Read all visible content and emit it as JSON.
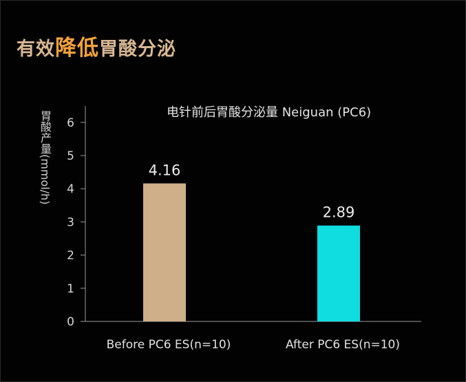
{
  "headline": {
    "prefix": "有效",
    "emphasis": "降低",
    "suffix": "胃酸分泌",
    "colors": {
      "normal": "#d8b892",
      "accent": "#f7a33b"
    }
  },
  "chart_data": {
    "type": "bar",
    "title": "电针前后胃酸分泌量 Neiguan (PC6)",
    "ylabel": "胃酸产量(mmol/h)",
    "xlabel": "",
    "categories": [
      "Before PC6 ES(n=10)",
      "After PC6 ES(n=10)"
    ],
    "values": [
      4.16,
      2.89
    ],
    "data_labels": [
      "4.16",
      "2.89"
    ],
    "colors": [
      "#cfae8a",
      "#0fdde0"
    ],
    "ylim": [
      0,
      6.5
    ],
    "yticks": [
      0,
      1,
      2,
      3,
      4,
      5,
      6
    ],
    "grid": false,
    "legend": "none"
  }
}
